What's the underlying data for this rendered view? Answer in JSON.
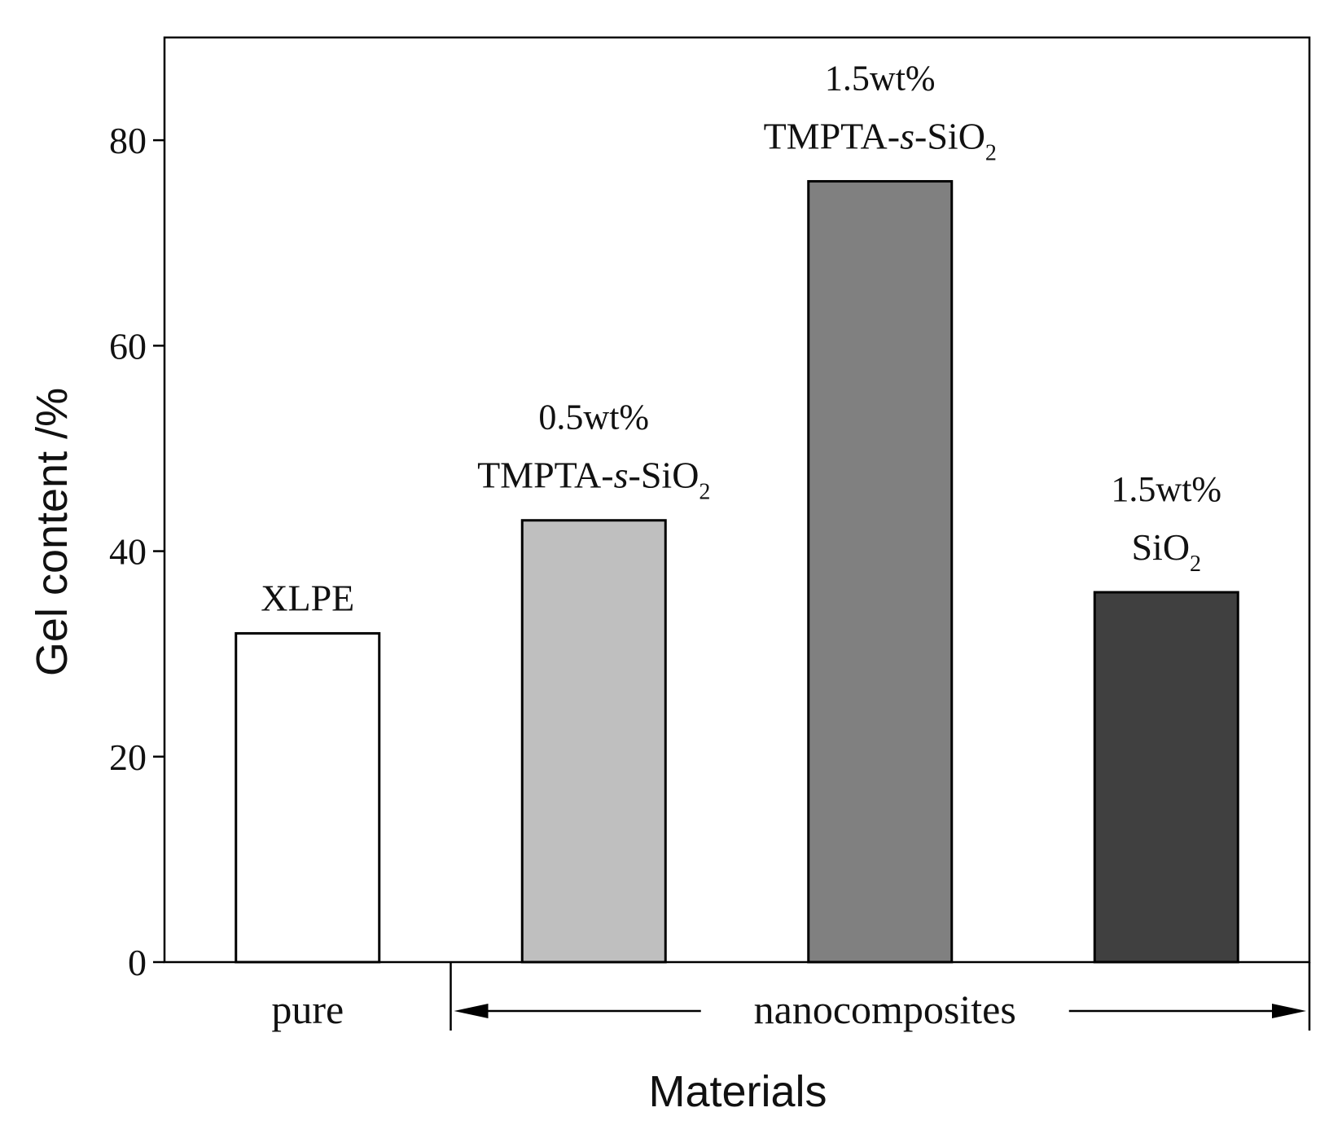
{
  "chart_data": {
    "type": "bar",
    "title": "",
    "xlabel": "Materials",
    "ylabel": "Gel content /%",
    "ylim": [
      0,
      90
    ],
    "yticks": [
      0,
      20,
      40,
      60,
      80
    ],
    "grid": false,
    "categories": [
      "XLPE",
      "0.5wt% TMPTA-s-SiO2",
      "1.5wt% TMPTA-s-SiO2",
      "1.5wt% SiO2"
    ],
    "values": [
      32,
      43,
      76,
      36
    ],
    "colors": [
      "#ffffff",
      "#bfbfbf",
      "#808080",
      "#404040"
    ],
    "bar_labels": [
      {
        "line1": "XLPE"
      },
      {
        "line1": "0.5wt%",
        "line2_prefix": "TMPTA-",
        "line2_italic": "s",
        "line2_mid": "-SiO",
        "line2_sub": "2"
      },
      {
        "line1": "1.5wt%",
        "line2_prefix": "TMPTA-",
        "line2_italic": "s",
        "line2_mid": "-SiO",
        "line2_sub": "2"
      },
      {
        "line1": "1.5wt%",
        "line2_prefix": "",
        "line2_italic": "",
        "line2_mid": "SiO",
        "line2_sub": "2"
      }
    ],
    "groups": [
      {
        "label": "pure",
        "bars": [
          0
        ]
      },
      {
        "label": "nanocomposites",
        "bars": [
          1,
          2,
          3
        ]
      }
    ]
  }
}
